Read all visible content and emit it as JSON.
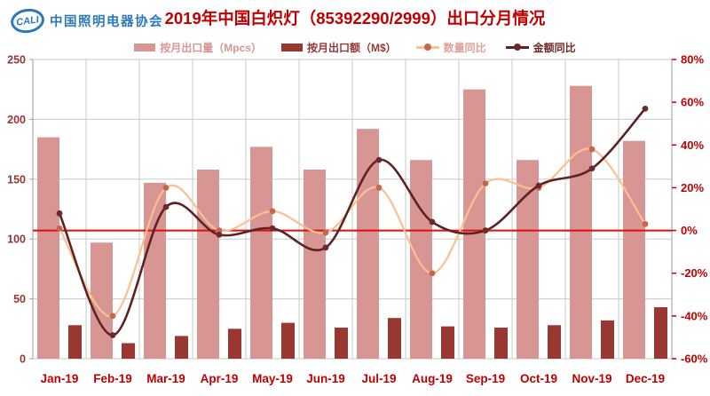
{
  "logo": {
    "abbr": "CALI",
    "name": "中国照明电器协会",
    "color": "#2B79B9"
  },
  "header": {
    "title": "2019年中国白炽灯（85392290/2999）出口分月情况",
    "color": "#C00000"
  },
  "legend": [
    {
      "label": "按月出口量（Mpcs）",
      "type": "bar",
      "color": "#D79694",
      "text_color": "#D79694"
    },
    {
      "label": "按月出口额（M$）",
      "type": "bar",
      "color": "#993830",
      "text_color": "#953735"
    },
    {
      "label": "数量同比",
      "type": "line",
      "color": "#FAC090",
      "marker_color": "#C4684C",
      "text_color": "#DCA39C"
    },
    {
      "label": "金额同比",
      "type": "line",
      "color": "#5E2220",
      "marker_color": "#6B2B29",
      "text_color": "#6E2B29"
    }
  ],
  "chart_data": {
    "type": "combo-bar-line",
    "categories": [
      "Jan-19",
      "Feb-19",
      "Mar-19",
      "Apr-19",
      "May-19",
      "Jun-19",
      "Jul-19",
      "Aug-19",
      "Sep-19",
      "Oct-19",
      "Nov-19",
      "Dec-19"
    ],
    "series": [
      {
        "name": "按月出口量（Mpcs）",
        "type": "bar",
        "axis": "left",
        "color": "#D79694",
        "values": [
          185,
          97,
          147,
          158,
          177,
          158,
          192,
          166,
          225,
          166,
          228,
          182
        ]
      },
      {
        "name": "按月出口额（M$）",
        "type": "bar",
        "axis": "left",
        "color": "#993830",
        "values": [
          28,
          13,
          19,
          25,
          30,
          26,
          34,
          27,
          26,
          28,
          32,
          43
        ]
      },
      {
        "name": "数量同比",
        "type": "line",
        "axis": "right",
        "color": "#FAC090",
        "marker_color": "#C4684C",
        "values": [
          1,
          -40,
          20,
          0,
          9,
          -1,
          20,
          -20,
          22,
          20,
          38,
          3
        ]
      },
      {
        "name": "金额同比",
        "type": "line",
        "axis": "right",
        "color": "#5E2220",
        "marker_color": "#6B2B29",
        "values": [
          8,
          -49,
          11,
          -2,
          1,
          -8,
          33,
          4,
          0,
          21,
          29,
          57
        ]
      }
    ],
    "left_axis": {
      "min": 0,
      "max": 250,
      "tick_values": [
        0,
        50,
        100,
        150,
        200,
        250
      ],
      "tick_labels": [
        "0",
        "50",
        "100",
        "150",
        "200",
        "250"
      ],
      "label_color": "#943634"
    },
    "right_axis": {
      "min": -60,
      "max": 80,
      "unit": "%",
      "tick_values": [
        -60,
        -40,
        -20,
        0,
        20,
        40,
        60,
        80
      ],
      "tick_labels": [
        "-60%",
        "-40%",
        "-20%",
        "0%",
        "20%",
        "40%",
        "60%",
        "80%"
      ],
      "label_color": "#C00000"
    },
    "x_axis": {
      "label_color": "#C00000"
    },
    "zero_line": {
      "axis": "right",
      "value": 0,
      "color": "#E10E0E"
    },
    "grid": {
      "show": true,
      "color": "#CACACA",
      "axis_line_color": "#9C9C9C"
    },
    "legend_position": "top"
  }
}
